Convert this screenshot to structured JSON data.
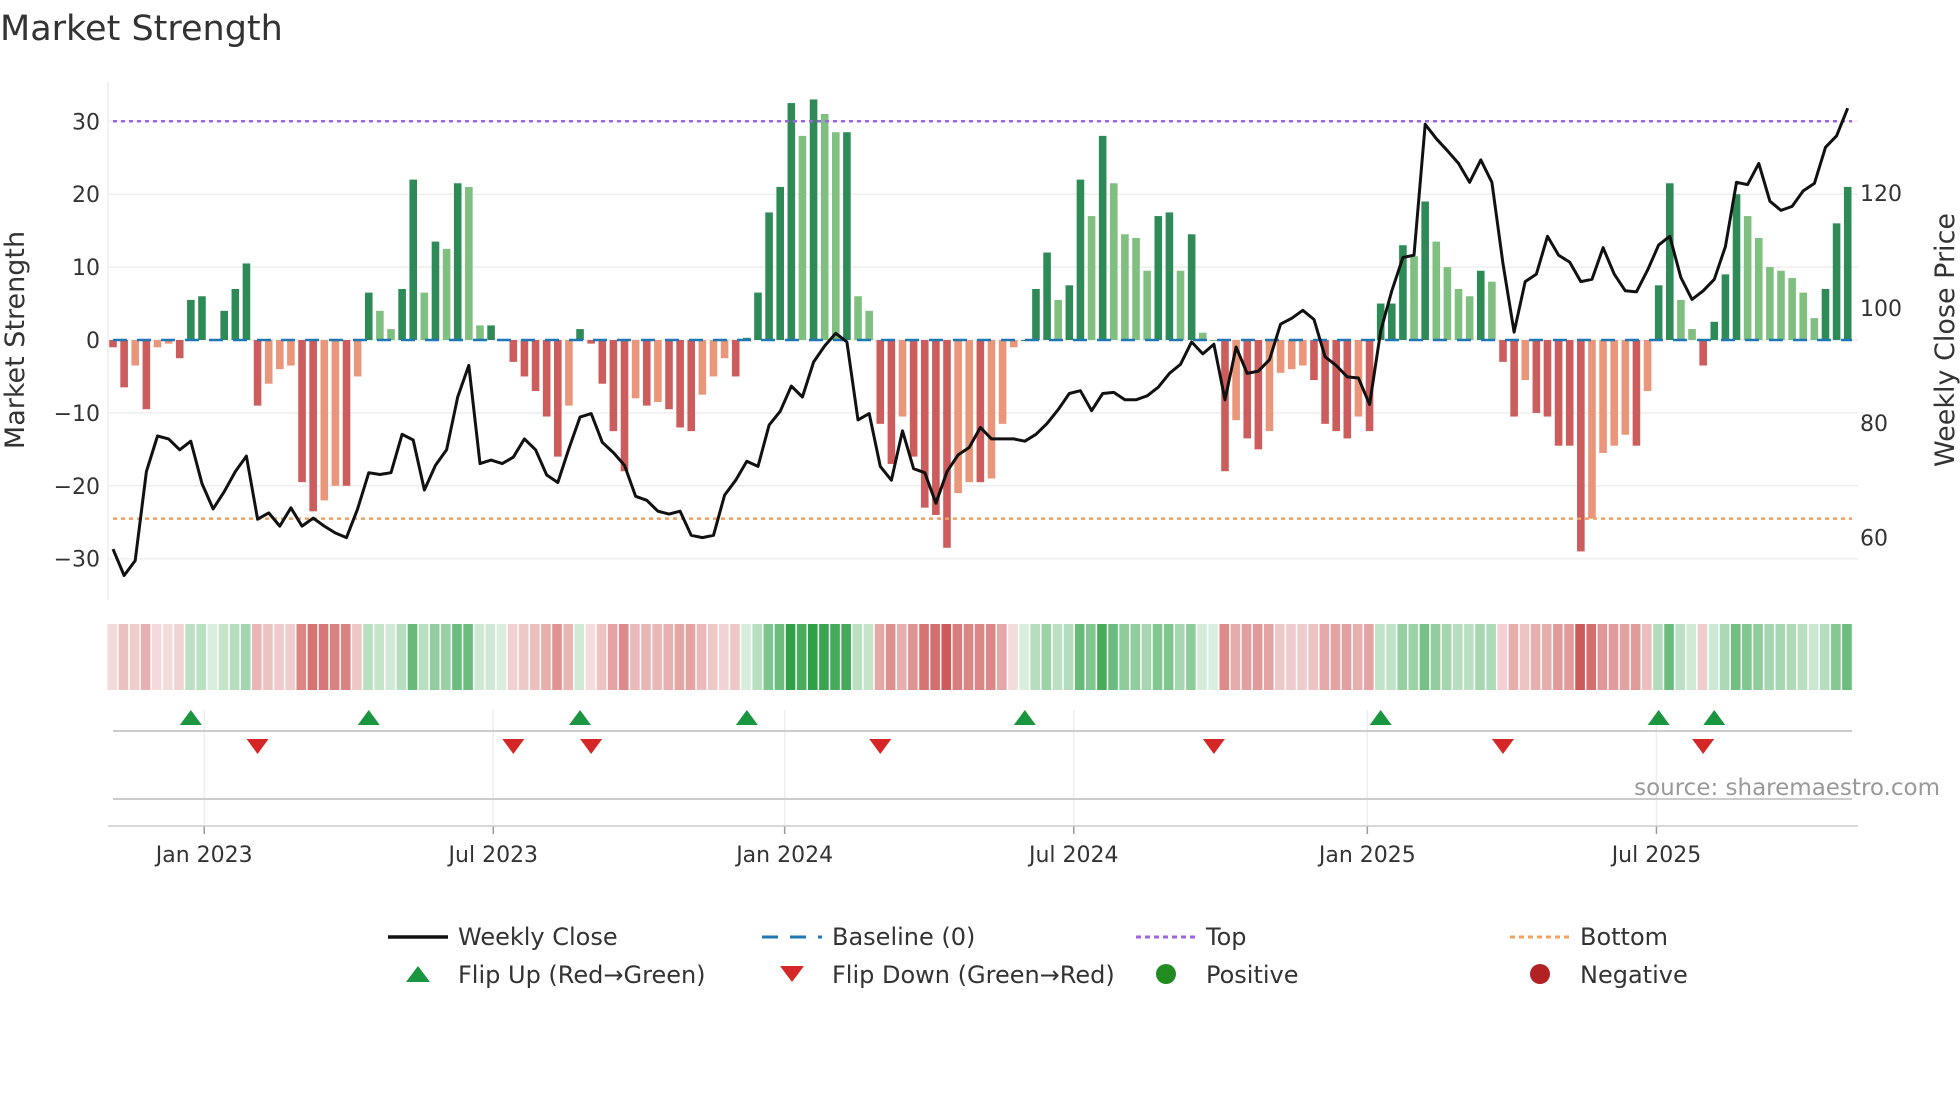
{
  "chart_data": {
    "type": "bar",
    "title": "Market Strength",
    "ylabel": "Market Strength",
    "y2label": "Weekly Close Price",
    "ylim": [
      -36,
      36
    ],
    "y2lim": [
      48,
      140
    ],
    "yticks": [
      -30,
      -20,
      -10,
      0,
      10,
      20,
      30
    ],
    "y2ticks": [
      60,
      80,
      100,
      120
    ],
    "top_level": 30,
    "bottom_level": -24.5,
    "baseline": 0,
    "x_unit": "weeks since mid-Nov 2022",
    "xticks": [
      {
        "label": "Jan 2023",
        "week": 8.2
      },
      {
        "label": "Jul 2023",
        "week": 34.2
      },
      {
        "label": "Jan 2024",
        "week": 60.4
      },
      {
        "label": "Jul 2024",
        "week": 86.4
      },
      {
        "label": "Jan 2025",
        "week": 112.8
      },
      {
        "label": "Jul 2025",
        "week": 138.8
      }
    ],
    "strength": [
      -1,
      -6.5,
      -3.5,
      -9.5,
      -1,
      -0.5,
      -2.5,
      5.5,
      6,
      0,
      4,
      7,
      10.5,
      -9,
      -6,
      -4,
      -3.5,
      -19.5,
      -23.5,
      -22,
      -20,
      -20,
      -5,
      6.5,
      4,
      1.5,
      7,
      22,
      6.5,
      13.5,
      12.5,
      21.5,
      21,
      2,
      2,
      0,
      -3,
      -5,
      -7,
      -10.5,
      -16,
      -9,
      1.5,
      -0.5,
      -6,
      -12.5,
      -18,
      -8,
      -9,
      -8.5,
      -9.5,
      -12,
      -12.5,
      -7.5,
      -5,
      -2.5,
      -5,
      0.3,
      6.5,
      17.5,
      21,
      32.5,
      28,
      33,
      31,
      28.5,
      28.5,
      6,
      4,
      -11.5,
      -17,
      -10.5,
      -16,
      -23,
      -24,
      -28.5,
      -21,
      -19.5,
      -19.5,
      -19,
      -11.5,
      -1,
      0,
      7,
      12,
      5.5,
      7.5,
      22,
      17,
      28,
      21.5,
      14.5,
      14,
      9.5,
      17,
      17.5,
      9.5,
      14.5,
      1,
      0,
      -18,
      -11,
      -13.5,
      -15,
      -12.5,
      -4.5,
      -4,
      -3.5,
      -5.5,
      -11.5,
      -12.5,
      -13.5,
      -10.5,
      -12.5,
      5,
      5,
      13,
      11.5,
      19,
      13.5,
      10,
      7,
      6,
      9.5,
      8,
      -3,
      -10.5,
      -5.5,
      -10,
      -10.5,
      -14.5,
      -14.5,
      -29,
      -24.5,
      -15.5,
      -14.5,
      -13,
      -14.5,
      -7,
      7.5,
      21.5,
      5.5,
      1.5,
      -3.5,
      2.5,
      9,
      20,
      17,
      14,
      10,
      9.5,
      8.5,
      6.5,
      3,
      7,
      16,
      21
    ],
    "close": [
      58,
      53.4,
      56,
      71.5,
      77.7,
      77.2,
      75.3,
      76.8,
      69.4,
      65,
      68,
      71.5,
      74.2,
      63.2,
      64.3,
      62,
      65.2,
      62,
      63.4,
      62,
      60.8,
      60,
      65,
      71.3,
      71,
      71.3,
      78,
      77,
      68.3,
      72.6,
      75.3,
      84.5,
      90,
      72.9,
      73.5,
      72.9,
      74,
      77.2,
      75.3,
      70.9,
      69.6,
      75.5,
      81,
      81.6,
      76.6,
      74.8,
      72.6,
      67.2,
      66.5,
      64.6,
      64.1,
      64.6,
      60.4,
      60,
      60.4,
      67.4,
      70,
      73.3,
      72.4,
      79.6,
      82,
      86.4,
      84.5,
      90.6,
      93.4,
      95.6,
      94.1,
      80.5,
      81.6,
      72.4,
      70,
      78.6,
      72,
      71.3,
      66,
      71.5,
      74.4,
      75.7,
      79.2,
      77.2,
      77.2,
      77.2,
      76.8,
      78,
      79.9,
      82.3,
      85.1,
      85.6,
      82.1,
      85.1,
      85.3,
      84,
      84,
      84.7,
      86.2,
      88.6,
      90.2,
      94.1,
      92,
      93.7,
      84,
      93.2,
      88.6,
      89,
      91,
      97.2,
      98.2,
      99.6,
      98,
      91.5,
      90,
      88,
      87.8,
      83.2,
      96,
      103,
      108.8,
      109.2,
      132,
      129.5,
      127.4,
      125.2,
      121.9,
      125.8,
      121.9,
      107.7,
      95.8,
      104.6,
      105.9,
      112.5,
      109.2,
      108,
      104.6,
      105,
      110.5,
      105.9,
      103,
      102.8,
      106.6,
      111,
      112.5,
      105.3,
      101.5,
      103,
      105,
      110.7,
      121.9,
      121.5,
      125.2,
      118.6,
      117,
      117.7,
      120.4,
      121.7,
      128,
      130,
      134.8
    ],
    "flip_up_weeks": [
      7,
      23,
      42,
      57,
      82,
      114,
      139,
      144
    ],
    "flip_down_weeks": [
      13,
      36,
      43,
      69,
      99,
      125,
      143
    ],
    "legend": {
      "placement": "bottom",
      "items": [
        {
          "key": "close",
          "label": "Weekly Close"
        },
        {
          "key": "baseline",
          "label": "Baseline (0)"
        },
        {
          "key": "top",
          "label": "Top"
        },
        {
          "key": "bottom",
          "label": "Bottom"
        },
        {
          "key": "flipup",
          "label": "Flip Up (Red→Green)"
        },
        {
          "key": "flipdown",
          "label": "Flip Down (Green→Red)"
        },
        {
          "key": "positive",
          "label": "Positive"
        },
        {
          "key": "negative",
          "label": "Negative"
        }
      ]
    },
    "source": "source: sharemaestro.com"
  },
  "colors": {
    "green_dark": "#2e8b57",
    "green_light": "#7fbf7f",
    "red_dark": "#cd5c5c",
    "red_light": "#e9967a",
    "top": "#9966dd",
    "bottom": "#f0a060",
    "baseline": "#1f77b4",
    "close": "#111111",
    "flip_up": "#1a9641",
    "flip_down": "#d62728",
    "positive": "#228b22",
    "negative": "#b22222"
  }
}
